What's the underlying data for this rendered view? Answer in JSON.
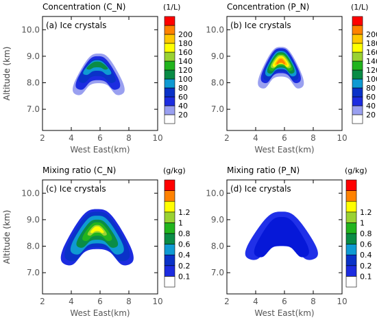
{
  "chart_data": [
    {
      "type": "heatmap",
      "title": "Concentration (C_N)",
      "panel_label": "(a) Ice crystals",
      "xlabel": "West East(km)",
      "ylabel": "Altitude (km)",
      "xlim": [
        2,
        10
      ],
      "ylim": [
        6.2,
        10.5
      ],
      "xticks": [
        "2",
        "4",
        "6",
        "8",
        "10"
      ],
      "yticks": [
        "7.0",
        "8.0",
        "9.0",
        "10.0"
      ],
      "colorbar": {
        "unit": "(1/L)",
        "labels": [
          "20",
          "40",
          "60",
          "80",
          "100",
          "120",
          "140",
          "160",
          "180",
          "200"
        ],
        "colors": [
          "#ffffff",
          "#9aa0f0",
          "#1c2ce0",
          "#0a32c8",
          "#0f9ad2",
          "#0a8c46",
          "#22b41e",
          "#9ad232",
          "#ffff00",
          "#ffc800",
          "#ff8200",
          "#ff0000"
        ]
      },
      "contours": [
        {
          "level": "20-40",
          "cx": 5.9,
          "bottom": 7.55,
          "top": 9.1,
          "halfwidth": 1.75
        },
        {
          "level": "40-60",
          "cx": 5.85,
          "bottom": 7.75,
          "top": 9.0,
          "halfwidth": 1.5
        },
        {
          "level": "60-80",
          "cx": 5.8,
          "bottom": 8.0,
          "top": 8.9,
          "halfwidth": 1.25
        },
        {
          "level": "80-100",
          "cx": 5.8,
          "bottom": 8.3,
          "top": 8.85,
          "halfwidth": 0.95
        },
        {
          "level": "100-120",
          "cx": 5.8,
          "bottom": 8.5,
          "top": 8.8,
          "halfwidth": 0.72
        }
      ]
    },
    {
      "type": "heatmap",
      "title": "Concentration (P_N)",
      "panel_label": "(b) Ice crystals",
      "xlabel": "West East(km)",
      "ylabel": "Altitude (km)",
      "xlim": [
        2,
        10
      ],
      "ylim": [
        6.2,
        10.5
      ],
      "xticks": [
        "2",
        "4",
        "6",
        "8",
        "10"
      ],
      "yticks": [
        "7.0",
        "8.0",
        "9.0",
        "10.0"
      ],
      "colorbar": {
        "unit": "(1/L)",
        "labels": [
          "20",
          "40",
          "60",
          "80",
          "100",
          "120",
          "140",
          "160",
          "180",
          "200"
        ],
        "colors": [
          "#ffffff",
          "#9aa0f0",
          "#1c2ce0",
          "#0a32c8",
          "#0f9ad2",
          "#0a8c46",
          "#22b41e",
          "#9ad232",
          "#ffff00",
          "#ffc800",
          "#ff8200",
          "#ff0000"
        ]
      },
      "contours": [
        {
          "level": "20-40",
          "cx": 5.75,
          "bottom": 7.8,
          "top": 9.35,
          "halfwidth": 1.55
        },
        {
          "level": "40-60",
          "cx": 5.75,
          "bottom": 8.0,
          "top": 9.3,
          "halfwidth": 1.35
        },
        {
          "level": "60-80",
          "cx": 5.75,
          "bottom": 8.1,
          "top": 9.25,
          "halfwidth": 1.2
        },
        {
          "level": "80-100",
          "cx": 5.75,
          "bottom": 8.25,
          "top": 9.2,
          "halfwidth": 1.05
        },
        {
          "level": "100-120",
          "cx": 5.75,
          "bottom": 8.35,
          "top": 9.15,
          "halfwidth": 0.92
        },
        {
          "level": "120-140",
          "cx": 5.75,
          "bottom": 8.45,
          "top": 9.1,
          "halfwidth": 0.8
        },
        {
          "level": "140-160",
          "cx": 5.75,
          "bottom": 8.55,
          "top": 9.05,
          "halfwidth": 0.68
        },
        {
          "level": "160-180",
          "cx": 5.75,
          "bottom": 8.6,
          "top": 9.0,
          "halfwidth": 0.55
        },
        {
          "level": "180-200",
          "cx": 5.75,
          "bottom": 8.65,
          "top": 8.95,
          "halfwidth": 0.42
        },
        {
          "level": ">200",
          "cx": 5.75,
          "bottom": 8.7,
          "top": 8.9,
          "halfwidth": 0.3
        }
      ]
    },
    {
      "type": "heatmap",
      "title": "Mixing ratio (C_N)",
      "panel_label": "(c) Ice crystals",
      "xlabel": "West East(km)",
      "ylabel": "Altitude (km)",
      "xlim": [
        2,
        10
      ],
      "ylim": [
        6.2,
        10.5
      ],
      "xticks": [
        "2",
        "4",
        "6",
        "8",
        "10"
      ],
      "yticks": [
        "7.0",
        "8.0",
        "9.0",
        "10.0"
      ],
      "colorbar": {
        "unit": "(g/kg)",
        "labels": [
          "0.1",
          "0.2",
          "0.4",
          "0.6",
          "0.8",
          "1",
          "1.2"
        ],
        "colors": [
          "#ffffff",
          "#1c2ce0",
          "#0a32c8",
          "#0f9ad2",
          "#0a8c46",
          "#22b41e",
          "#9ad232",
          "#ffff00",
          "#ff8200",
          "#ff0000"
        ]
      },
      "contours": [
        {
          "level": "0.1-0.2",
          "cx": 5.8,
          "bottom": 7.3,
          "top": 9.4,
          "halfwidth": 2.45
        },
        {
          "level": "0.2-0.4",
          "cx": 5.8,
          "bottom": 7.45,
          "top": 9.3,
          "halfwidth": 2.2
        },
        {
          "level": "0.4-0.6",
          "cx": 5.8,
          "bottom": 7.7,
          "top": 9.15,
          "halfwidth": 1.8
        },
        {
          "level": "0.6-0.8",
          "cx": 5.8,
          "bottom": 7.95,
          "top": 9.0,
          "halfwidth": 1.4
        },
        {
          "level": "0.8-1",
          "cx": 5.8,
          "bottom": 8.2,
          "top": 8.9,
          "halfwidth": 1.0
        },
        {
          "level": "1-1.2",
          "cx": 5.8,
          "bottom": 8.4,
          "top": 8.8,
          "halfwidth": 0.65
        },
        {
          "level": ">1.2",
          "cx": 5.8,
          "bottom": 8.5,
          "top": 8.75,
          "halfwidth": 0.45
        }
      ]
    },
    {
      "type": "heatmap",
      "title": "Mixing ratio (P_N)",
      "panel_label": "(d) Ice crystals",
      "xlabel": "West East(km)",
      "ylabel": "Altitude (km)",
      "xlim": [
        2,
        10
      ],
      "ylim": [
        6.2,
        10.5
      ],
      "xticks": [
        "2",
        "4",
        "6",
        "8",
        "10"
      ],
      "yticks": [
        "7.0",
        "8.0",
        "9.0",
        "10.0"
      ],
      "colorbar": {
        "unit": "(g/kg)",
        "labels": [
          "0.1",
          "0.2",
          "0.4",
          "0.6",
          "0.8",
          "1",
          "1.2"
        ],
        "colors": [
          "#ffffff",
          "#1c2ce0",
          "#0a32c8",
          "#0f9ad2",
          "#0a8c46",
          "#22b41e",
          "#9ad232",
          "#ffff00",
          "#ff8200",
          "#ff0000"
        ]
      },
      "contours": [
        {
          "level": "0.1-0.2",
          "cx": 5.8,
          "bottom": 7.5,
          "top": 9.3,
          "halfwidth": 2.45
        },
        {
          "level": "0.2-0.4",
          "cx": 5.8,
          "bottom": 7.6,
          "top": 9.1,
          "halfwidth": 1.85
        }
      ]
    }
  ]
}
